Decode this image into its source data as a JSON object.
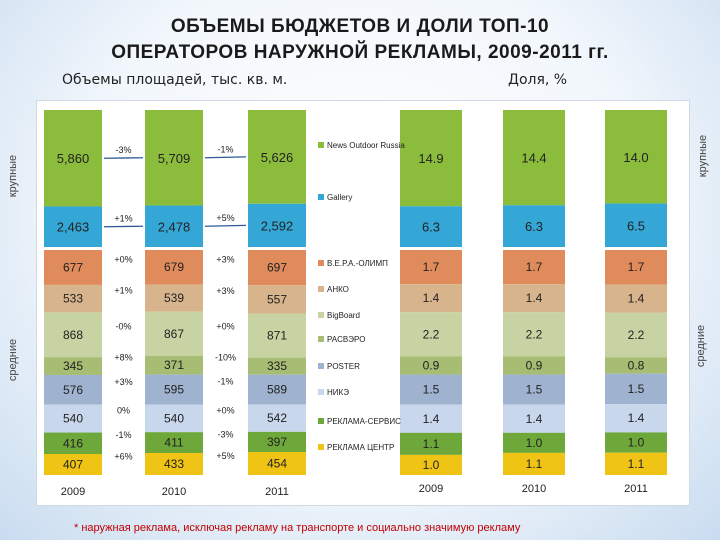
{
  "title_line1": "ОБЪЕМЫ БЮДЖЕТОВ И ДОЛИ ТОП-10",
  "title_line2": "ОПЕРАТОРОВ  НАРУЖНОЙ РЕКЛАМЫ, 2009-2011 гг.",
  "subtitle_left": "Объемы площадей, тыс. кв. м.",
  "subtitle_right": "Доля, %",
  "label_large": "крупные",
  "label_medium": "средние",
  "footnote": "* наружная реклама, исключая рекламу на транспорте  и социально значимую рекламу",
  "chart_data": [
    {
      "type": "bar",
      "stacked": true,
      "title": "Объемы площадей, тыс. кв. м.",
      "categories": [
        "2009",
        "2010",
        "2011"
      ],
      "series": [
        {
          "name": "В.Е.Р.А.-ОЛИМП",
          "color": "#e08b5c",
          "values": [
            677,
            679,
            697
          ],
          "labels": [
            "677",
            "679",
            "697"
          ]
        },
        {
          "name": "АНКО",
          "color": "#d8b48c",
          "values": [
            533,
            539,
            557
          ],
          "labels": [
            "533",
            "539",
            "557"
          ]
        },
        {
          "name": "BigBoard",
          "color": "#c7d3a2",
          "values": [
            868,
            867,
            871
          ],
          "labels": [
            "868",
            "867",
            "871"
          ]
        },
        {
          "name": "PACBЭPO",
          "color": "#a8bd74",
          "values": [
            345,
            371,
            335
          ],
          "labels": [
            "345",
            "371",
            "335"
          ]
        },
        {
          "name": "POSTER",
          "color": "#9fb2cf",
          "values": [
            576,
            595,
            589
          ],
          "labels": [
            "576",
            "595",
            "589"
          ]
        },
        {
          "name": "НИКЭ",
          "color": "#c8d7eb",
          "values": [
            540,
            540,
            542
          ],
          "labels": [
            "540",
            "540",
            "542"
          ]
        },
        {
          "name": "РЕКЛАМА-СЕРВИС",
          "color": "#6fa83a",
          "values": [
            416,
            411,
            397
          ],
          "labels": [
            "416",
            "411",
            "397"
          ]
        },
        {
          "name": "РЕКЛАМА ЦЕНТР",
          "color": "#f0c414",
          "values": [
            407,
            433,
            454
          ],
          "labels": [
            "407",
            "433",
            "454"
          ]
        }
      ],
      "large_operators": [
        {
          "name": "News Outdoor Russia",
          "color": "#8cbc3c",
          "values": [
            5860,
            5709,
            5626
          ],
          "labels": [
            "5,860",
            "5,709",
            "5,626"
          ]
        },
        {
          "name": "Gallery",
          "color": "#35a7d6",
          "values": [
            2463,
            2478,
            2592
          ],
          "labels": [
            "2,463",
            "2,478",
            "2,592"
          ]
        }
      ],
      "changes": [
        {
          "from": "2009",
          "to": "2010",
          "values": [
            "-3%",
            "+1%",
            "+0%",
            "+1%",
            "-0%",
            "+8%",
            "+3%",
            "0%",
            "-1%",
            "+6%"
          ]
        },
        {
          "from": "2010",
          "to": "2011",
          "values": [
            "-1%",
            "+5%",
            "+3%",
            "+3%",
            "+0%",
            "-10%",
            "-1%",
            "+0%",
            "-3%",
            "+5%"
          ]
        }
      ]
    },
    {
      "type": "bar",
      "stacked": true,
      "title": "Доля, %",
      "categories": [
        "2009",
        "2010",
        "2011"
      ],
      "series": [
        {
          "name": "News Outdoor Russia",
          "color": "#8cbc3c",
          "values": [
            14.9,
            14.4,
            14.0
          ],
          "labels": [
            "14.9",
            "14.4",
            "14.0"
          ]
        },
        {
          "name": "Gallery",
          "color": "#35a7d6",
          "values": [
            6.3,
            6.3,
            6.5
          ],
          "labels": [
            "6.3",
            "6.3",
            "6.5"
          ]
        },
        {
          "name": "В.Е.Р.А.-ОЛИМП",
          "color": "#e08b5c",
          "values": [
            1.7,
            1.7,
            1.7
          ],
          "labels": [
            "1.7",
            "1.7",
            "1.7"
          ]
        },
        {
          "name": "АНКО",
          "color": "#d8b48c",
          "values": [
            1.4,
            1.4,
            1.4
          ],
          "labels": [
            "1.4",
            "1.4",
            "1.4"
          ]
        },
        {
          "name": "BigBoard",
          "color": "#c7d3a2",
          "values": [
            2.2,
            2.2,
            2.2
          ],
          "labels": [
            "2.2",
            "2.2",
            "2.2"
          ]
        },
        {
          "name": "PACBЭPO",
          "color": "#a8bd74",
          "values": [
            0.9,
            0.9,
            0.8
          ],
          "labels": [
            "0.9",
            "0.9",
            "0.8"
          ]
        },
        {
          "name": "POSTER",
          "color": "#9fb2cf",
          "values": [
            1.5,
            1.5,
            1.5
          ],
          "labels": [
            "1.5",
            "1.5",
            "1.5"
          ]
        },
        {
          "name": "НИКЭ",
          "color": "#c8d7eb",
          "values": [
            1.4,
            1.4,
            1.4
          ],
          "labels": [
            "1.4",
            "1.4",
            "1.4"
          ]
        },
        {
          "name": "РЕКЛАМА-СЕРВИС",
          "color": "#6fa83a",
          "values": [
            1.1,
            1.0,
            1.0
          ],
          "labels": [
            "1.1",
            "1.0",
            "1.0"
          ]
        },
        {
          "name": "РЕКЛАМА ЦЕНТР",
          "color": "#f0c414",
          "values": [
            1.0,
            1.1,
            1.1
          ],
          "labels": [
            "1.0",
            "1.1",
            "1.1"
          ]
        }
      ]
    }
  ],
  "legend": [
    "News Outdoor Russia",
    "Gallery",
    "В.Е.Р.А.-ОЛИМП",
    "АНКО",
    "BigBoard",
    "PACBЭPO",
    "POSTER",
    "НИКЭ",
    "РЕКЛАМА-СЕРВИС",
    "РЕКЛАМА ЦЕНТР"
  ]
}
